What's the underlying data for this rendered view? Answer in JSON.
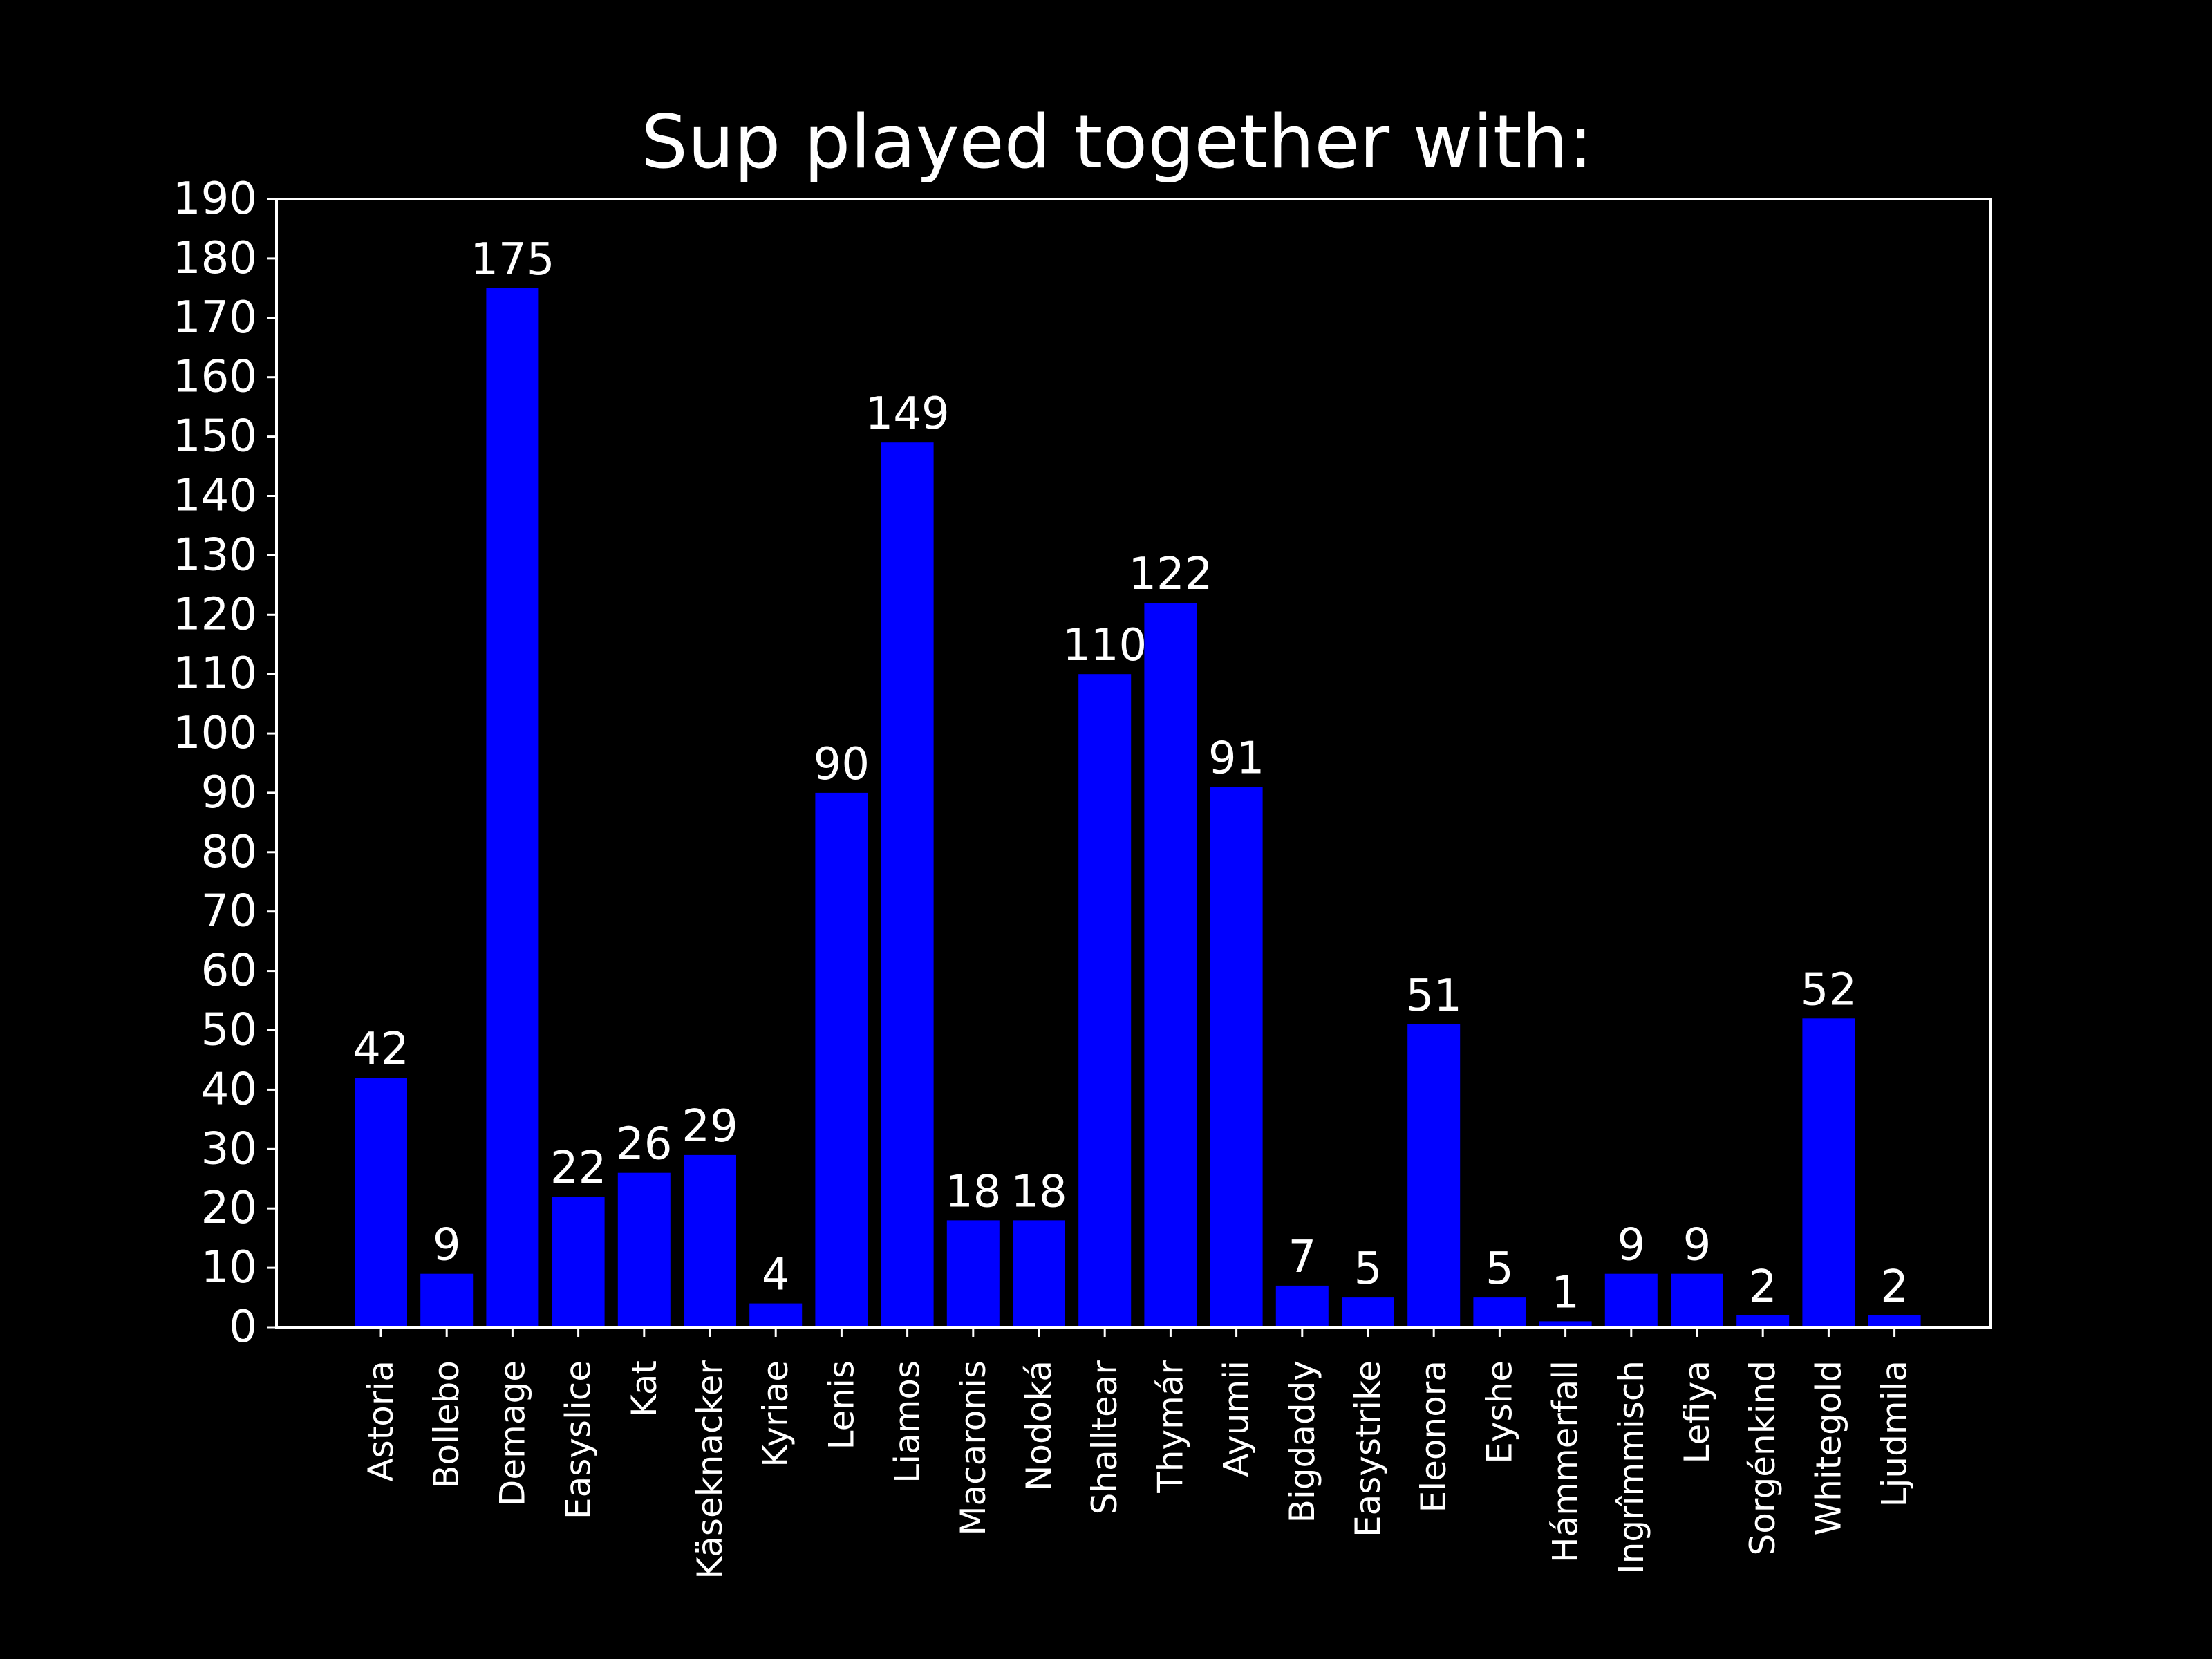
{
  "chart_data": {
    "type": "bar",
    "title": "Sup played together with:",
    "xlabel": "",
    "ylabel": "",
    "categories": [
      "Astoria",
      "Bollebo",
      "Demage",
      "Easyslice",
      "Kat",
      "Käseknacker",
      "Kyriae",
      "Lenis",
      "Liamos",
      "Macaronis",
      "Nodoká",
      "Shalltear",
      "Thymár",
      "Ayumii",
      "Bigdaddy",
      "Easystrike",
      "Eleonora",
      "Eyshe",
      "Hámmerfall",
      "Ingrîmmisch",
      "Lefiya",
      "Sorgénkind",
      "Whitegold",
      "Ljudmila"
    ],
    "values": [
      42,
      9,
      175,
      22,
      26,
      29,
      4,
      90,
      149,
      18,
      18,
      110,
      122,
      91,
      7,
      5,
      51,
      5,
      1,
      9,
      9,
      2,
      52,
      2
    ],
    "ylim": [
      0,
      190
    ],
    "yticks": [
      0,
      10,
      20,
      30,
      40,
      50,
      60,
      70,
      80,
      90,
      100,
      110,
      120,
      130,
      140,
      150,
      160,
      170,
      180,
      190
    ],
    "bar_color": "#0000ff",
    "background_color": "#000000",
    "text_color": "#ffffff",
    "grid": false,
    "legend": "none",
    "data_labels": true
  }
}
